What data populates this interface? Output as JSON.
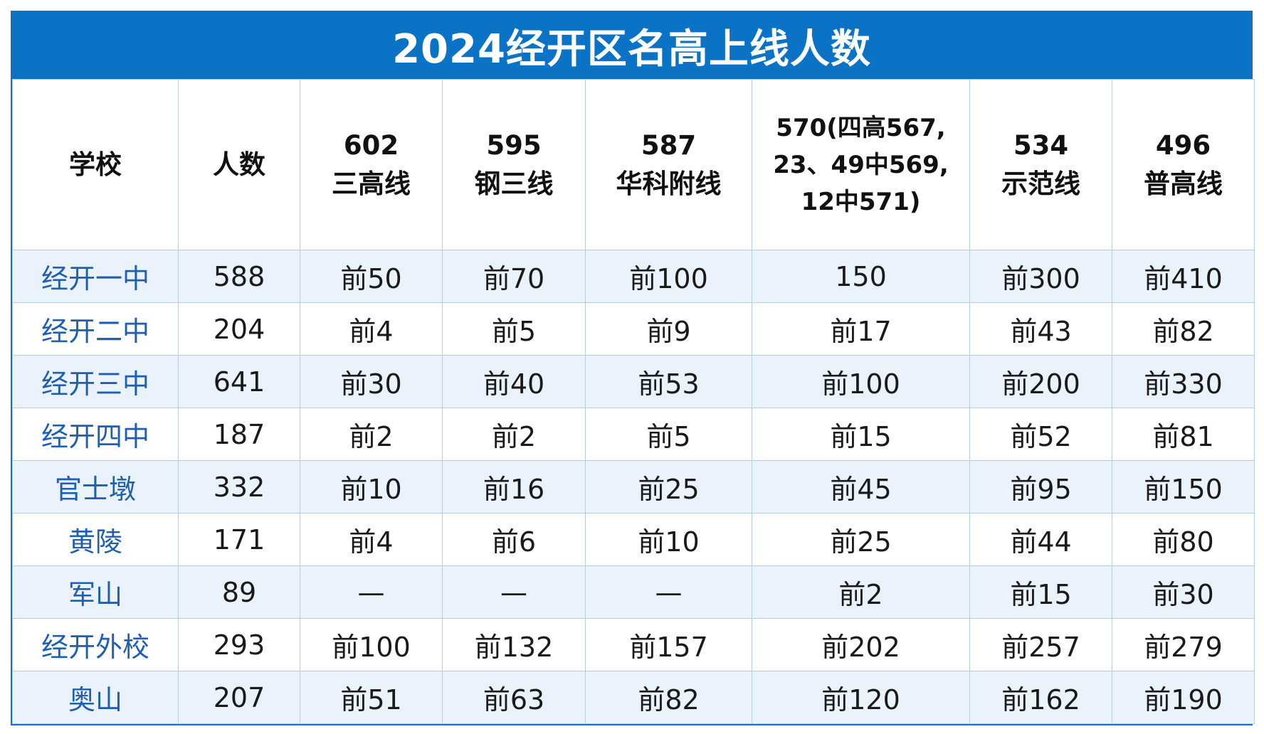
{
  "title": "2024经开区名高上线人数",
  "headers": {
    "school": "学校",
    "count": "人数",
    "l602": [
      "602",
      "三高线"
    ],
    "l595": [
      "595",
      "钢三线"
    ],
    "l587": [
      "587",
      "华科附线"
    ],
    "l570": [
      "570(四高567,",
      "23、49中569,",
      "12中571)"
    ],
    "l534": [
      "534",
      "示范线"
    ],
    "l496": [
      "496",
      "普高线"
    ]
  },
  "rows": [
    {
      "school": "经开一中",
      "count": "588",
      "l602": "前50",
      "l595": "前70",
      "l587": "前100",
      "l570": "150",
      "l534": "前300",
      "l496": "前410"
    },
    {
      "school": "经开二中",
      "count": "204",
      "l602": "前4",
      "l595": "前5",
      "l587": "前9",
      "l570": "前17",
      "l534": "前43",
      "l496": "前82"
    },
    {
      "school": "经开三中",
      "count": "641",
      "l602": "前30",
      "l595": "前40",
      "l587": "前53",
      "l570": "前100",
      "l534": "前200",
      "l496": "前330"
    },
    {
      "school": "经开四中",
      "count": "187",
      "l602": "前2",
      "l595": "前2",
      "l587": "前5",
      "l570": "前15",
      "l534": "前52",
      "l496": "前81"
    },
    {
      "school": "官士墩",
      "count": "332",
      "l602": "前10",
      "l595": "前16",
      "l587": "前25",
      "l570": "前45",
      "l534": "前95",
      "l496": "前150"
    },
    {
      "school": "黄陵",
      "count": "171",
      "l602": "前4",
      "l595": "前6",
      "l587": "前10",
      "l570": "前25",
      "l534": "前44",
      "l496": "前80"
    },
    {
      "school": "军山",
      "count": "89",
      "l602": "—",
      "l595": "—",
      "l587": "—",
      "l570": "前2",
      "l534": "前15",
      "l496": "前30"
    },
    {
      "school": "经开外校",
      "count": "293",
      "l602": "前100",
      "l595": "前132",
      "l587": "前157",
      "l570": "前202",
      "l534": "前257",
      "l496": "前279"
    },
    {
      "school": "奥山",
      "count": "207",
      "l602": "前51",
      "l595": "前63",
      "l587": "前82",
      "l570": "前120",
      "l534": "前162",
      "l496": "前190"
    }
  ],
  "colors": {
    "title_bg": "#0a73c6",
    "school_text": "#1f5fb0",
    "stripe": "#eaf2fb",
    "border": "#b9cde0"
  }
}
